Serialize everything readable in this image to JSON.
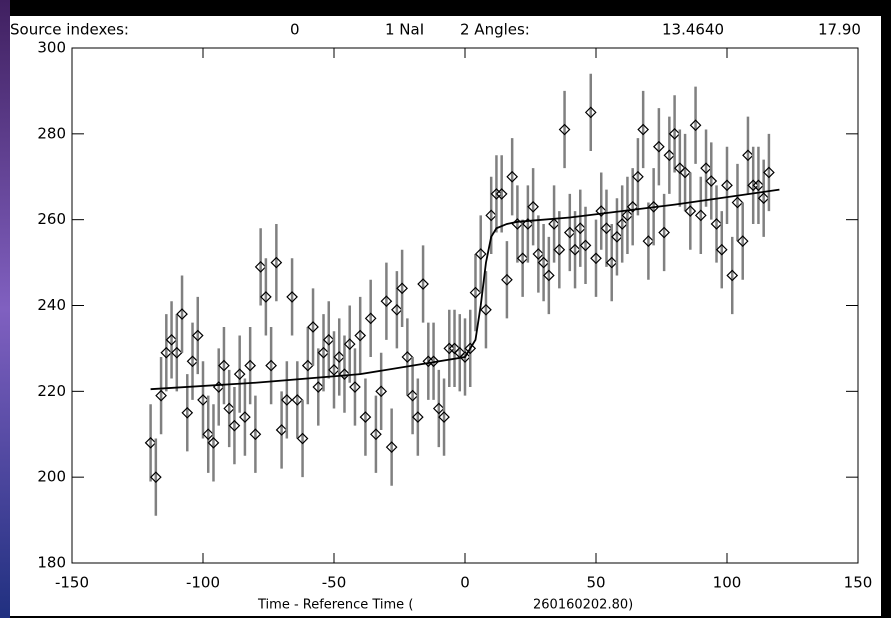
{
  "chart_data": {
    "type": "scatter",
    "header": [
      "Source indexes:",
      "0",
      "1 NaI",
      "2 Angles:",
      "13.4640",
      "17.90"
    ],
    "x_label": [
      "Time - Reference Time (",
      "260160202.80)"
    ],
    "xlim": [
      -150,
      150
    ],
    "xticks": [
      -150,
      -100,
      -50,
      0,
      50,
      100,
      150
    ],
    "ylim": [
      180,
      300
    ],
    "yticks": [
      180,
      200,
      220,
      240,
      260,
      280,
      300
    ],
    "error": 9,
    "x": [
      -120,
      -118,
      -116,
      -114,
      -112,
      -110,
      -108,
      -106,
      -104,
      -102,
      -100,
      -98,
      -96,
      -94,
      -92,
      -90,
      -88,
      -86,
      -84,
      -82,
      -80,
      -78,
      -76,
      -74,
      -72,
      -70,
      -68,
      -66,
      -64,
      -62,
      -60,
      -58,
      -56,
      -54,
      -52,
      -50,
      -48,
      -46,
      -44,
      -42,
      -40,
      -38,
      -36,
      -34,
      -32,
      -30,
      -28,
      -26,
      -24,
      -22,
      -20,
      -18,
      -16,
      -14,
      -12,
      -10,
      -8,
      -6,
      -4,
      -2,
      0,
      2,
      4,
      6,
      8,
      10,
      12,
      14,
      16,
      18,
      20,
      22,
      24,
      26,
      28,
      30,
      32,
      34,
      36,
      38,
      40,
      42,
      44,
      46,
      48,
      50,
      52,
      54,
      56,
      58,
      60,
      62,
      64,
      66,
      68,
      70,
      72,
      74,
      76,
      78,
      80,
      82,
      84,
      86,
      88,
      90,
      92,
      94,
      96,
      98,
      100,
      102,
      104,
      106,
      108,
      110,
      112,
      114,
      116
    ],
    "values": [
      208,
      200,
      219,
      229,
      232,
      229,
      238,
      215,
      227,
      233,
      218,
      210,
      208,
      221,
      226,
      216,
      212,
      224,
      214,
      226,
      210,
      249,
      242,
      226,
      250,
      211,
      218,
      242,
      218,
      209,
      226,
      235,
      221,
      229,
      232,
      225,
      228,
      224,
      231,
      221,
      233,
      214,
      237,
      210,
      220,
      241,
      207,
      239,
      244,
      228,
      219,
      214,
      245,
      227,
      227,
      216,
      214,
      230,
      230,
      229,
      228,
      230,
      243,
      252,
      239,
      261,
      266,
      266,
      246,
      270,
      259,
      251,
      259,
      263,
      252,
      250,
      247,
      259,
      253,
      281,
      257,
      253,
      258,
      254,
      285,
      251,
      262,
      258,
      250,
      256,
      259,
      261,
      263,
      270,
      281,
      255,
      263,
      277,
      257,
      275,
      280,
      272,
      271,
      262,
      282,
      261,
      272,
      269,
      259,
      253,
      268,
      247,
      264,
      255,
      275,
      268,
      268,
      265,
      271
    ],
    "fit": {
      "x": [
        -120,
        -80,
        -40,
        0,
        4,
        6,
        8,
        10,
        12,
        16,
        20,
        40,
        80,
        120
      ],
      "y": [
        220.5,
        222,
        224,
        228,
        232,
        240,
        250,
        256,
        258,
        259,
        259.5,
        260.5,
        263.5,
        267
      ]
    }
  }
}
